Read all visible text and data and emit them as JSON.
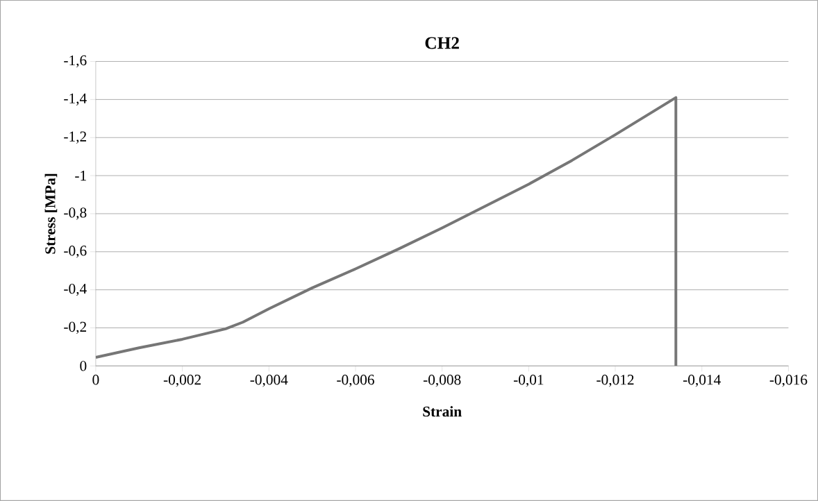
{
  "chart_data": {
    "type": "line",
    "title": "CH2",
    "xlabel": "Strain",
    "ylabel": "Stress [MPa]",
    "x": [
      0,
      -0.001,
      -0.002,
      -0.003,
      -0.0034,
      -0.004,
      -0.005,
      -0.006,
      -0.007,
      -0.008,
      -0.009,
      -0.01,
      -0.011,
      -0.012,
      -0.0134,
      -0.0134
    ],
    "series": [
      {
        "color": "#767676",
        "values": [
          -0.045,
          -0.095,
          -0.14,
          -0.195,
          -0.23,
          -0.3,
          -0.41,
          -0.51,
          -0.615,
          -0.725,
          -0.84,
          -0.955,
          -1.08,
          -1.215,
          -1.41,
          0
        ]
      }
    ],
    "xlim": [
      0,
      -0.016
    ],
    "ylim": [
      0,
      -1.6
    ],
    "xticks": [
      0,
      {
        "value": -0.002,
        "label": "-0,002"
      },
      {
        "value": -0.004,
        "label": "-0,004"
      },
      {
        "value": -0.006,
        "label": "-0,006"
      },
      {
        "value": -0.008,
        "label": "-0,008"
      },
      {
        "value": -0.01,
        "label": "-0,01"
      },
      {
        "value": -0.012,
        "label": "-0,012"
      },
      {
        "value": -0.014,
        "label": "-0,014"
      },
      {
        "value": -0.016,
        "label": "-0,016"
      }
    ],
    "yticks": [
      0,
      {
        "value": -0.2,
        "label": "-0,2"
      },
      {
        "value": -0.4,
        "label": "-0,4"
      },
      {
        "value": -0.6,
        "label": "-0,6"
      },
      {
        "value": -0.8,
        "label": "-0,8"
      },
      -1,
      {
        "value": -1.2,
        "label": "-1,2"
      },
      {
        "value": -1.4,
        "label": "-1,4"
      },
      {
        "value": -1.6,
        "label": "-1,6"
      }
    ],
    "grid": "y",
    "marker": "none",
    "line_style": "solid"
  }
}
